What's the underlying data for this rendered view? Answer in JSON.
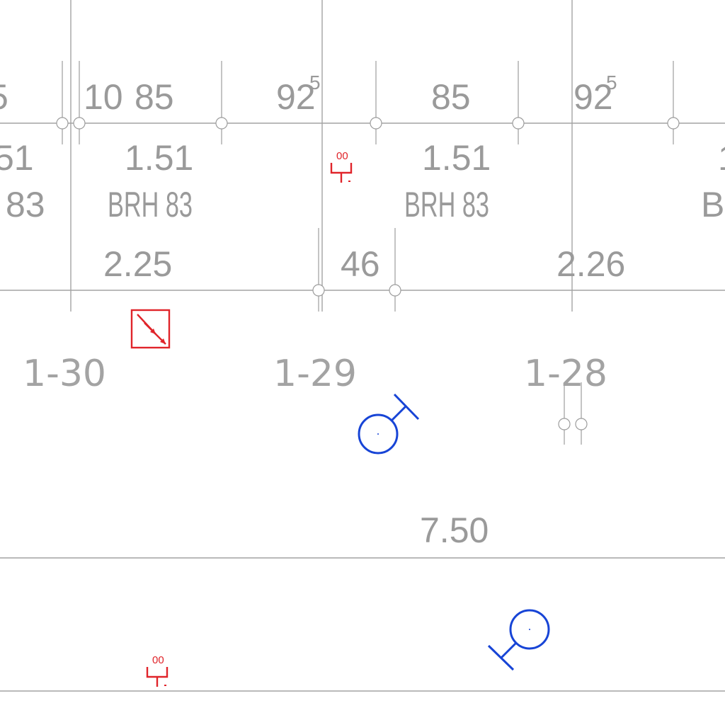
{
  "colors": {
    "linework": "#a4a4a4",
    "text": "#9a9a9a",
    "fire_symbol": "#e0242a",
    "electrical_symbol": "#1744d6",
    "background": "#ffffff"
  },
  "top_dimensions": [
    {
      "id": "left-partial",
      "text": "5"
    },
    {
      "id": "seg-10",
      "text": "10"
    },
    {
      "id": "seg-85-a",
      "text": "85"
    },
    {
      "id": "seg-92-a",
      "text": "92",
      "sup": "5"
    },
    {
      "id": "seg-85-b",
      "text": "85"
    },
    {
      "id": "seg-92-b",
      "text": "92",
      "sup": "5"
    }
  ],
  "window_labels": [
    {
      "id": "win-left",
      "width": "51",
      "type": "83"
    },
    {
      "id": "win-a",
      "width": "1.51",
      "type": "BRH 83"
    },
    {
      "id": "win-b",
      "width": "1.51",
      "type": "BRH 83"
    },
    {
      "id": "win-right",
      "width": "1",
      "type": "BR"
    }
  ],
  "lower_dimensions": [
    {
      "id": "dim-225",
      "text": "2.25"
    },
    {
      "id": "dim-46",
      "text": "46"
    },
    {
      "id": "dim-226",
      "text": "2.26"
    }
  ],
  "rooms": [
    {
      "id": "room-1-30",
      "label": "1-30"
    },
    {
      "id": "room-1-29",
      "label": "1-29"
    },
    {
      "id": "room-1-28",
      "label": "1-28"
    }
  ],
  "corridor_dimension": "7.50",
  "symbols": [
    {
      "id": "fire-extinguisher-top",
      "kind": "fire-extinguisher",
      "label": "00"
    },
    {
      "id": "fire-extinguisher-bottom",
      "kind": "fire-extinguisher",
      "label": "00"
    },
    {
      "id": "smoke-vent",
      "kind": "smoke-vent"
    },
    {
      "id": "light-fixture-a",
      "kind": "wall-light"
    },
    {
      "id": "light-fixture-b",
      "kind": "wall-light"
    }
  ]
}
